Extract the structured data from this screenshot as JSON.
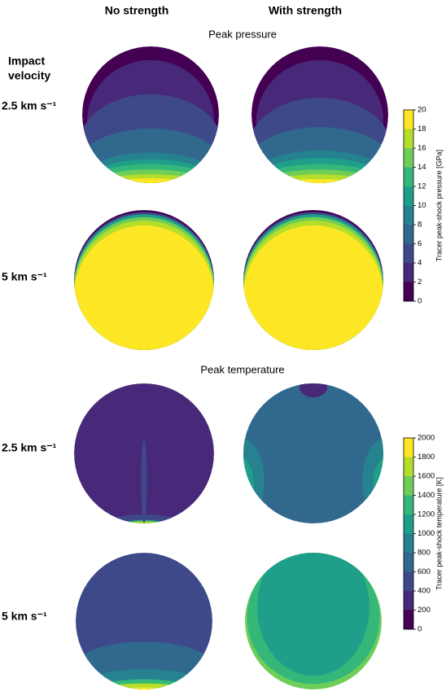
{
  "columns": [
    "No strength",
    "With strength"
  ],
  "row_heading": [
    "Impact",
    "velocity"
  ],
  "panels": [
    {
      "title": "Peak pressure",
      "rows": [
        "2.5 km s⁻¹",
        "5 km s⁻¹"
      ],
      "colorbar": {
        "label": "Tracer peak-shock pressure [GPa]",
        "lim": [
          0,
          20
        ],
        "ticks": [
          0,
          2,
          4,
          6,
          8,
          10,
          12,
          14,
          16,
          18,
          20
        ],
        "colors": [
          "#440154",
          "#482878",
          "#3e4989",
          "#31688e",
          "#26828e",
          "#1f9e89",
          "#35b779",
          "#6ece58",
          "#b5de2b",
          "#fde725"
        ]
      }
    },
    {
      "title": "Peak temperature",
      "rows": [
        "2.5 km s⁻¹",
        "5 km s⁻¹"
      ],
      "colorbar": {
        "label": "Tracer peak-shock temperature [K]",
        "lim": [
          0,
          2000
        ],
        "ticks": [
          0,
          200,
          400,
          600,
          800,
          1000,
          1200,
          1400,
          1600,
          1800,
          2000
        ],
        "colors": [
          "#440154",
          "#482878",
          "#3e4989",
          "#31688e",
          "#26828e",
          "#1f9e89",
          "#35b779",
          "#6ece58",
          "#b5de2b",
          "#fde725"
        ]
      }
    }
  ]
}
